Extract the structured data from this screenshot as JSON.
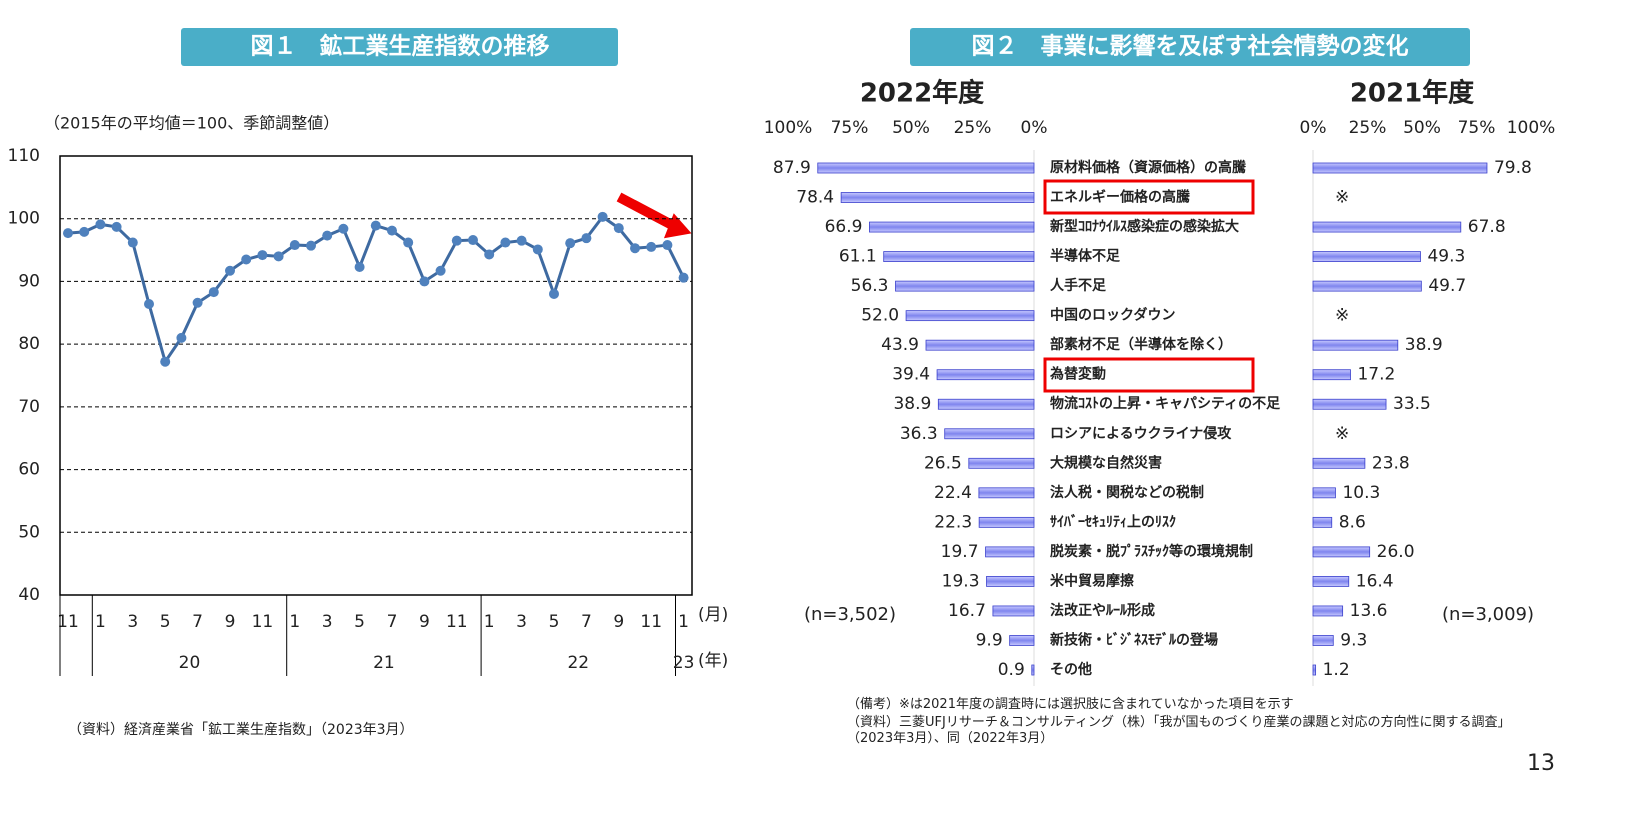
{
  "chart_data": [
    {
      "type": "line",
      "title": "図１　鉱工業生産指数の推移",
      "subtitle": "（2015年の平均値＝100、季節調整値）",
      "categories": [
        "11",
        null,
        "1",
        null,
        "3",
        null,
        "5",
        null,
        "7",
        null,
        "9",
        null,
        "11",
        null,
        "1",
        null,
        "3",
        null,
        "5",
        null,
        "7",
        null,
        "9",
        null,
        "11",
        null,
        "1",
        null,
        "3",
        null,
        "5",
        null,
        "7",
        null,
        "9",
        null,
        "11",
        null,
        "1"
      ],
      "years": [
        "20",
        "21",
        "22",
        "23"
      ],
      "x_unit": "(月)",
      "year_unit": "(年)",
      "values": [
        97.7,
        97.9,
        99.1,
        98.7,
        96.2,
        86.4,
        77.2,
        81.0,
        86.6,
        88.3,
        91.7,
        93.5,
        94.2,
        94.0,
        95.8,
        95.7,
        97.3,
        98.4,
        92.3,
        98.9,
        98.1,
        96.2,
        90.0,
        91.7,
        96.5,
        96.6,
        94.3,
        96.2,
        96.5,
        95.1,
        88.0,
        96.1,
        96.9,
        100.3,
        98.5,
        95.3,
        95.5,
        95.8,
        90.6
      ],
      "color": "#3e6aa1",
      "marker_color": "#4f81bd",
      "ylim": [
        40,
        110
      ],
      "yticks": [
        40,
        50,
        60,
        70,
        80,
        90,
        100,
        110
      ],
      "grid": true,
      "source": "（資料）経済産業省「鉱工業生産指数」（2023年3月）"
    },
    {
      "type": "hbar",
      "title": "図２　事業に影響を及ぼす社会情勢の変化",
      "categories": [
        "原材料価格（資源価格）の高騰",
        "エネルギー価格の高騰",
        "新型ｺﾛﾅｳｲﾙｽ感染症の感染拡大",
        "半導体不足",
        "人手不足",
        "中国のロックダウン",
        "部素材不足（半導体を除く）",
        "為替変動",
        "物流ｺｽﾄの上昇・キャパシティの不足",
        "ロシアによるウクライナ侵攻",
        "大規模な自然災害",
        "法人税・関税などの税制",
        "ｻｲﾊﾞｰｾｷｭﾘﾃｨ上のﾘｽｸ",
        "脱炭素・脱ﾌﾟﾗｽﾁｯｸ等の環境規制",
        "米中貿易摩擦",
        "法改正やﾙｰﾙ形成",
        "新技術・ﾋﾞｼﾞﾈｽﾓﾃﾞﾙの登場",
        "その他"
      ],
      "xlim": [
        0,
        100
      ],
      "xticks": [
        {
          "value": 0,
          "label": "0%"
        },
        {
          "value": 25,
          "label": "25%"
        },
        {
          "value": 50,
          "label": "50%"
        },
        {
          "value": 75,
          "label": "75%"
        },
        {
          "value": 100,
          "label": "100%"
        }
      ],
      "series": [
        {
          "name": "2022年度",
          "color": "#8a8ff0",
          "n": "(n=3,502)",
          "values": [
            87.9,
            78.4,
            66.9,
            61.1,
            56.3,
            52.0,
            43.9,
            39.4,
            38.9,
            36.3,
            26.5,
            22.4,
            22.3,
            19.7,
            19.3,
            16.7,
            9.9,
            0.9
          ],
          "value_labels": [
            "87.9",
            "78.4",
            "66.9",
            "61.1",
            "56.3",
            "52.0",
            "43.9",
            "39.4",
            "38.9",
            "36.3",
            "26.5",
            "22.4",
            "22.3",
            "19.7",
            "19.3",
            "16.7",
            "9.9",
            "0.9"
          ]
        },
        {
          "name": "2021年度",
          "color": "#8a8ff0",
          "n": "(n=3,009)",
          "values": [
            79.8,
            null,
            67.8,
            49.3,
            49.7,
            null,
            38.9,
            17.2,
            33.5,
            null,
            23.8,
            10.3,
            8.6,
            26.0,
            16.4,
            13.6,
            9.3,
            1.2
          ],
          "value_labels": [
            "79.8",
            "※",
            "67.8",
            "49.3",
            "49.7",
            "※",
            "38.9",
            "17.2",
            "33.5",
            "※",
            "23.8",
            "10.3",
            "8.6",
            "26.0",
            "16.4",
            "13.6",
            "9.3",
            "1.2"
          ]
        }
      ],
      "notes": [
        "（備考）※は2021年度の調査時には選択肢に含まれていなかった項目を示す",
        "（資料）三菱UFJリサーチ＆コンサルティング（株）「我が国ものづくり産業の課題と対応の方向性に関する調査」（2023年3月）、同（2022年3月）"
      ]
    }
  ],
  "page_number": "13"
}
